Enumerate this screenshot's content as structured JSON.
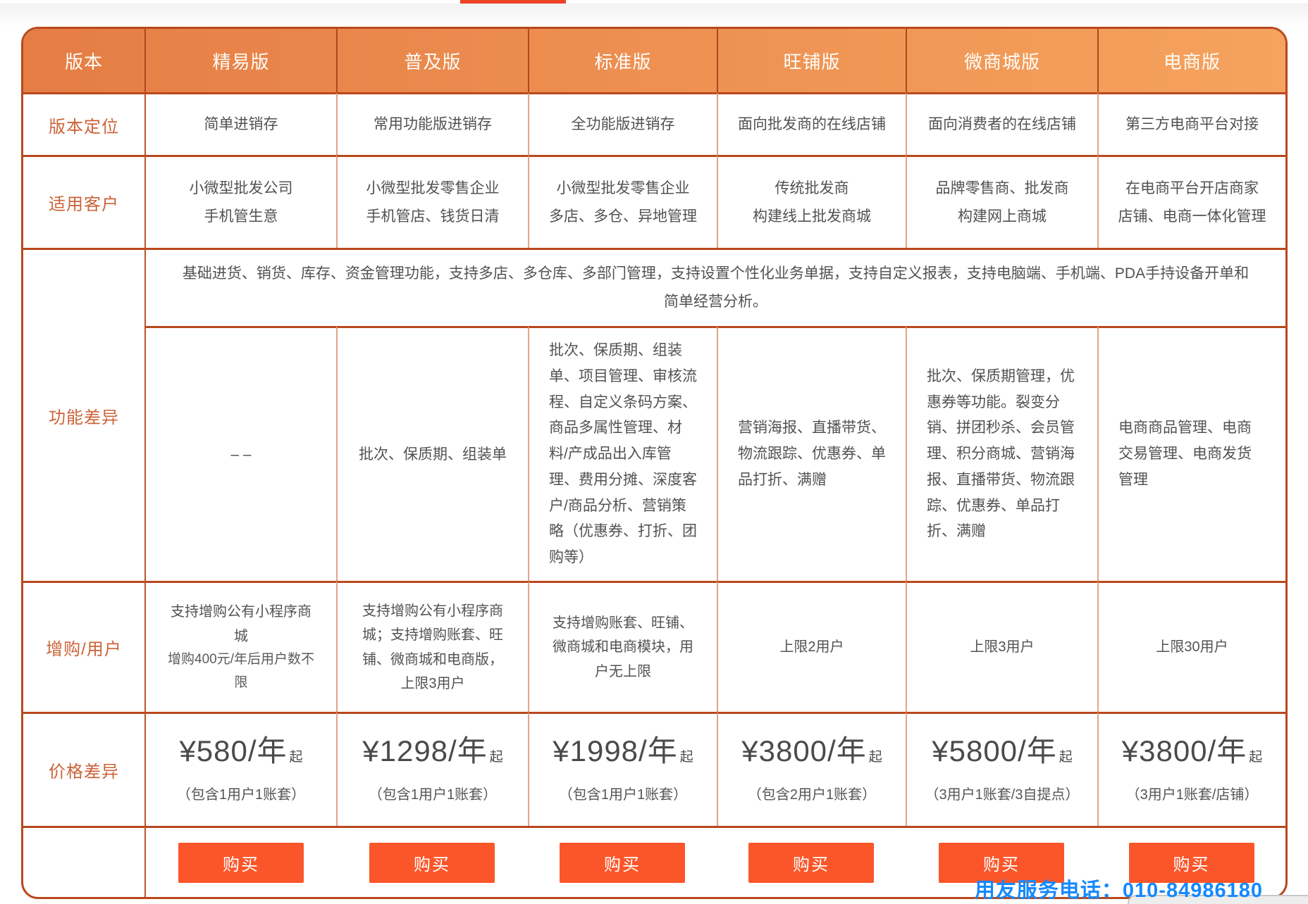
{
  "page": {
    "top_bar_color": "#EB4325",
    "service_phone": "用友服务电话：010-84986180",
    "service_phone_color": "#1589FE"
  },
  "table": {
    "accent_colors": {
      "header_gradient_left": "#E57D45",
      "header_gradient_right": "#F5A35E",
      "border_dark": "#B9481E",
      "label_text": "#CC6338",
      "buy_button": "#FB5629"
    },
    "header": [
      "版本",
      "精易版",
      "普及版",
      "标准版",
      "旺铺版",
      "微商城版",
      "电商版"
    ],
    "row_labels": {
      "positioning": "版本定位",
      "customers": "适用客户",
      "features": "功能差异",
      "addon": "增购/用户",
      "price": "价格差异"
    },
    "features_common": "基础进货、销货、库存、资金管理功能，支持多店、多仓库、多部门管理，支持设置个性化业务单据，支持自定义报表，支持电脑端、手机端、PDA手持设备开单和简单经营分析。",
    "buy_label": "购买",
    "columns": [
      {
        "name": "精易版",
        "positioning": "简单进销存",
        "customers": [
          "小微型批发公司",
          "手机管生意"
        ],
        "features": "– –",
        "addon": [
          "支持增购公有小程序商城",
          "增购400元/年后用户数不限"
        ],
        "price": "¥580/年",
        "price_suffix": "起",
        "price_note": "（包含1用户1账套）"
      },
      {
        "name": "普及版",
        "positioning": "常用功能版进销存",
        "customers": [
          "小微型批发零售企业",
          "手机管店、钱货日清"
        ],
        "features": "批次、保质期、组装单",
        "addon": [
          "支持增购公有小程序商城；支持增购账套、旺铺、微商城和电商版，上限3用户"
        ],
        "price": "¥1298/年",
        "price_suffix": "起",
        "price_note": "（包含1用户1账套）"
      },
      {
        "name": "标准版",
        "positioning": "全功能版进销存",
        "customers": [
          "小微型批发零售企业",
          "多店、多仓、异地管理"
        ],
        "features": "批次、保质期、组装单、项目管理、审核流程、自定义条码方案、商品多属性管理、材料/产成品出入库管理、费用分摊、深度客户/商品分析、营销策略（优惠券、打折、团购等）",
        "addon": [
          "支持增购账套、旺铺、微商城和电商模块，用户无上限"
        ],
        "price": "¥1998/年",
        "price_suffix": "起",
        "price_note": "（包含1用户1账套）"
      },
      {
        "name": "旺铺版",
        "positioning": "面向批发商的在线店铺",
        "customers": [
          "传统批发商",
          "构建线上批发商城"
        ],
        "features": "营销海报、直播带货、物流跟踪、优惠券、单品打折、满赠",
        "addon": [
          "上限2用户"
        ],
        "price": "¥3800/年",
        "price_suffix": "起",
        "price_note": "（包含2用户1账套）"
      },
      {
        "name": "微商城版",
        "positioning": "面向消费者的在线店铺",
        "customers": [
          "品牌零售商、批发商",
          "构建网上商城"
        ],
        "features": "批次、保质期管理，优惠券等功能。裂变分销、拼团秒杀、会员管理、积分商城、营销海报、直播带货、物流跟踪、优惠券、单品打折、满赠",
        "addon": [
          "上限3用户"
        ],
        "price": "¥5800/年",
        "price_suffix": "起",
        "price_note": "（3用户1账套/3自提点）"
      },
      {
        "name": "电商版",
        "positioning": "第三方电商平台对接",
        "customers": [
          "在电商平台开店商家",
          "店铺、电商一体化管理"
        ],
        "features": "电商商品管理、电商交易管理、电商发货管理",
        "addon": [
          "上限30用户"
        ],
        "price": "¥3800/年",
        "price_suffix": "起",
        "price_note": "（3用户1账套/店铺）"
      }
    ]
  }
}
